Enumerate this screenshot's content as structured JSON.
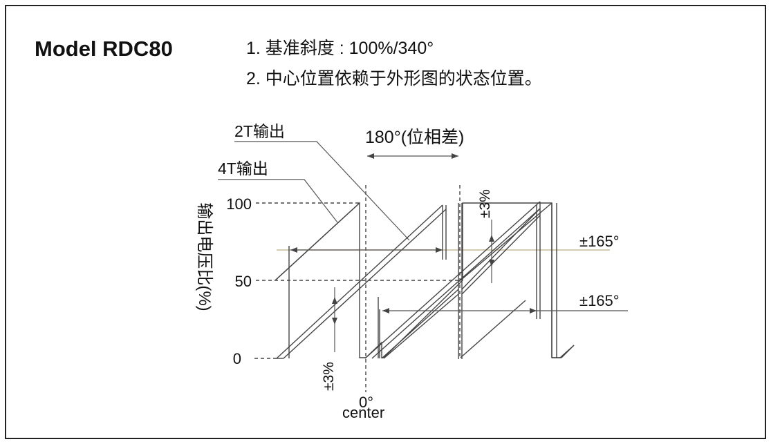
{
  "header": {
    "model": "Model RDC80",
    "note1": "1. 基准斜度 : 100%/340°",
    "note2": "2. 中心位置依赖于外形图的状态位置。"
  },
  "labels": {
    "output_2t": "2T输出",
    "output_4t": "4T输出",
    "phase_diff": "180°(位相差)",
    "y_axis": "输出电压比(%)",
    "tick_100": "100",
    "tick_50": "50",
    "tick_0": "0",
    "tol_top": "±3%",
    "tol_bottom": "±3%",
    "angle_top": "±165°",
    "angle_bottom": "±165°",
    "zero_deg": "0°",
    "center": "center"
  },
  "colors": {
    "frame": "#222222",
    "line": "#444444",
    "reference_line": "#c8b898"
  }
}
